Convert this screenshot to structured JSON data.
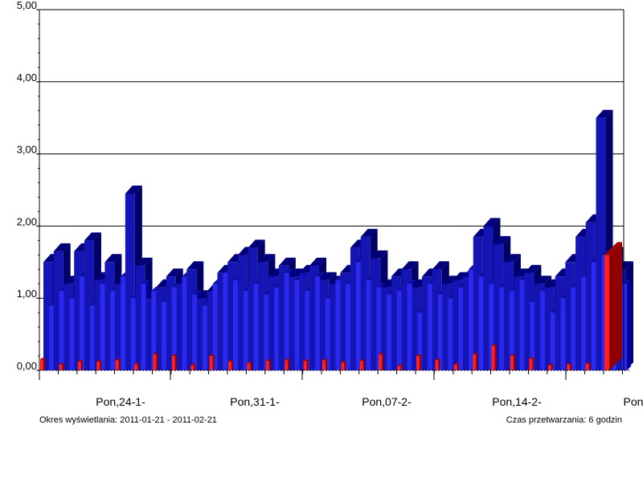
{
  "chart_data": {
    "type": "bar",
    "style": "3d-clustered",
    "ylim": [
      0,
      5
    ],
    "yticks": [
      "0,00",
      "1,00",
      "2,00",
      "3,00",
      "4,00",
      "5,00"
    ],
    "grid": true,
    "xticks": [
      "Pon,24-1-",
      "Pon,31-1-",
      "Pon,07-2-",
      "Pon,14-2-",
      "Pon"
    ],
    "series": [
      {
        "color": "#1010b0",
        "values": [
          1.5,
          1.65,
          1.2,
          1.65,
          1.8,
          1.25,
          1.5,
          1.2,
          2.45,
          1.45,
          1.0,
          1.15,
          1.3,
          1.2,
          1.4,
          1.0,
          1.1,
          1.35,
          1.5,
          1.6,
          1.7,
          1.5,
          1.3,
          1.45,
          1.3,
          1.35,
          1.45,
          1.25,
          1.2,
          1.35,
          1.7,
          1.85,
          1.55,
          1.15,
          1.3,
          1.4,
          1.15,
          1.3,
          1.4,
          1.2,
          1.25,
          1.3,
          1.85,
          2.0,
          1.75,
          1.5,
          1.3,
          1.35,
          1.2,
          1.15,
          1.3,
          1.5,
          1.85,
          2.05,
          3.5,
          1.6,
          1.4
        ],
        "values_secondary": [
          0.9,
          1.1,
          1.0,
          1.3,
          0.9,
          1.2,
          1.1,
          1.3,
          1.0,
          1.2,
          1.1,
          0.95,
          1.15,
          1.3,
          1.05,
          0.9,
          1.2,
          1.35,
          1.25,
          1.1,
          1.2,
          1.05,
          1.15,
          1.35,
          1.25,
          1.1,
          1.3,
          1.0,
          1.25,
          1.2,
          1.5,
          1.25,
          1.15,
          1.05,
          1.1,
          1.2,
          0.8,
          1.2,
          1.05,
          1.0,
          1.15,
          1.4,
          1.3,
          1.2,
          1.15,
          1.1,
          1.25,
          0.95,
          1.1,
          0.8,
          1.0,
          1.15,
          1.3,
          1.5,
          1.6,
          1.45,
          1.2
        ]
      },
      {
        "color": "#e02020",
        "values": [
          0.15,
          0.08,
          0.12,
          0.12,
          0.14,
          0.08,
          0.22,
          0.2,
          0.07,
          0.2,
          0.12,
          0.1,
          0.13,
          0.14,
          0.13,
          0.14,
          0.11,
          0.13,
          0.22,
          0.06,
          0.2,
          0.14,
          0.08,
          0.22,
          0.34,
          0.2,
          0.16,
          0.07,
          0.08,
          0.09,
          1.6
        ]
      }
    ]
  },
  "footer": {
    "left": "Okres wyświetlania: 2011-01-21 - 2011-02-21",
    "right": "Czas przetwarzania: 6 godzin"
  }
}
